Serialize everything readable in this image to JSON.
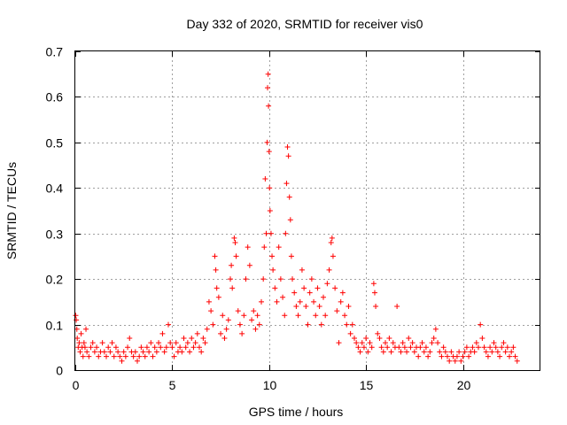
{
  "chart_data": {
    "type": "scatter",
    "title": "Day 332 of 2020, SRMTID for receiver vis0",
    "xlabel": "GPS time / hours",
    "ylabel": "SRMTID / TECUs",
    "xlim": [
      0,
      24
    ],
    "ylim": [
      0,
      0.7
    ],
    "xticks": [
      0,
      5,
      10,
      15,
      20
    ],
    "xtick_labels": [
      "0",
      "5",
      "10",
      "15",
      "20"
    ],
    "yticks": [
      0,
      0.1,
      0.2,
      0.3,
      0.4,
      0.5,
      0.6,
      0.7
    ],
    "ytick_labels": [
      "0",
      "0.1",
      "0.2",
      "0.3",
      "0.4",
      "0.5",
      "0.6",
      "0.7"
    ],
    "grid": true,
    "marker": "+",
    "color": "#ff0000",
    "series": [
      {
        "name": "vis0",
        "points": [
          [
            0.02,
            0.12
          ],
          [
            0.05,
            0.11
          ],
          [
            0.08,
            0.09
          ],
          [
            0.1,
            0.07
          ],
          [
            0.15,
            0.05
          ],
          [
            0.2,
            0.06
          ],
          [
            0.25,
            0.04
          ],
          [
            0.3,
            0.08
          ],
          [
            0.35,
            0.05
          ],
          [
            0.4,
            0.03
          ],
          [
            0.45,
            0.06
          ],
          [
            0.5,
            0.05
          ],
          [
            0.55,
            0.09
          ],
          [
            0.6,
            0.04
          ],
          [
            0.7,
            0.03
          ],
          [
            0.8,
            0.05
          ],
          [
            0.9,
            0.06
          ],
          [
            1.0,
            0.04
          ],
          [
            1.1,
            0.05
          ],
          [
            1.2,
            0.03
          ],
          [
            1.3,
            0.04
          ],
          [
            1.4,
            0.06
          ],
          [
            1.5,
            0.04
          ],
          [
            1.6,
            0.03
          ],
          [
            1.7,
            0.05
          ],
          [
            1.8,
            0.04
          ],
          [
            1.9,
            0.06
          ],
          [
            2.0,
            0.03
          ],
          [
            2.1,
            0.05
          ],
          [
            2.2,
            0.04
          ],
          [
            2.3,
            0.03
          ],
          [
            2.4,
            0.02
          ],
          [
            2.5,
            0.04
          ],
          [
            2.6,
            0.03
          ],
          [
            2.7,
            0.05
          ],
          [
            2.8,
            0.07
          ],
          [
            2.9,
            0.04
          ],
          [
            3.0,
            0.03
          ],
          [
            3.1,
            0.04
          ],
          [
            3.2,
            0.02
          ],
          [
            3.3,
            0.03
          ],
          [
            3.4,
            0.05
          ],
          [
            3.5,
            0.04
          ],
          [
            3.6,
            0.03
          ],
          [
            3.7,
            0.05
          ],
          [
            3.8,
            0.04
          ],
          [
            3.9,
            0.06
          ],
          [
            4.0,
            0.03
          ],
          [
            4.1,
            0.05
          ],
          [
            4.2,
            0.04
          ],
          [
            4.3,
            0.06
          ],
          [
            4.4,
            0.05
          ],
          [
            4.5,
            0.08
          ],
          [
            4.6,
            0.04
          ],
          [
            4.7,
            0.05
          ],
          [
            4.8,
            0.1
          ],
          [
            4.9,
            0.06
          ],
          [
            5.0,
            0.05
          ],
          [
            5.1,
            0.03
          ],
          [
            5.2,
            0.06
          ],
          [
            5.3,
            0.04
          ],
          [
            5.4,
            0.05
          ],
          [
            5.5,
            0.04
          ],
          [
            5.6,
            0.07
          ],
          [
            5.7,
            0.05
          ],
          [
            5.8,
            0.06
          ],
          [
            5.9,
            0.04
          ],
          [
            6.0,
            0.07
          ],
          [
            6.1,
            0.05
          ],
          [
            6.2,
            0.06
          ],
          [
            6.3,
            0.08
          ],
          [
            6.4,
            0.05
          ],
          [
            6.5,
            0.04
          ],
          [
            6.6,
            0.07
          ],
          [
            6.7,
            0.06
          ],
          [
            6.8,
            0.09
          ],
          [
            6.9,
            0.15
          ],
          [
            7.0,
            0.13
          ],
          [
            7.1,
            0.1
          ],
          [
            7.2,
            0.25
          ],
          [
            7.25,
            0.22
          ],
          [
            7.3,
            0.18
          ],
          [
            7.4,
            0.16
          ],
          [
            7.5,
            0.08
          ],
          [
            7.6,
            0.12
          ],
          [
            7.7,
            0.07
          ],
          [
            7.8,
            0.09
          ],
          [
            7.9,
            0.11
          ],
          [
            8.0,
            0.2
          ],
          [
            8.05,
            0.23
          ],
          [
            8.1,
            0.18
          ],
          [
            8.2,
            0.29
          ],
          [
            8.25,
            0.28
          ],
          [
            8.3,
            0.25
          ],
          [
            8.4,
            0.13
          ],
          [
            8.5,
            0.1
          ],
          [
            8.6,
            0.08
          ],
          [
            8.7,
            0.12
          ],
          [
            8.8,
            0.2
          ],
          [
            8.9,
            0.27
          ],
          [
            9.0,
            0.23
          ],
          [
            9.1,
            0.11
          ],
          [
            9.2,
            0.13
          ],
          [
            9.3,
            0.09
          ],
          [
            9.4,
            0.12
          ],
          [
            9.5,
            0.1
          ],
          [
            9.6,
            0.15
          ],
          [
            9.7,
            0.2
          ],
          [
            9.75,
            0.27
          ],
          [
            9.8,
            0.42
          ],
          [
            9.85,
            0.3
          ],
          [
            9.9,
            0.5
          ],
          [
            9.92,
            0.62
          ],
          [
            9.95,
            0.65
          ],
          [
            9.97,
            0.58
          ],
          [
            10.0,
            0.48
          ],
          [
            10.02,
            0.4
          ],
          [
            10.05,
            0.35
          ],
          [
            10.1,
            0.3
          ],
          [
            10.15,
            0.25
          ],
          [
            10.2,
            0.22
          ],
          [
            10.3,
            0.18
          ],
          [
            10.4,
            0.15
          ],
          [
            10.5,
            0.27
          ],
          [
            10.6,
            0.2
          ],
          [
            10.7,
            0.16
          ],
          [
            10.8,
            0.12
          ],
          [
            10.85,
            0.3
          ],
          [
            10.9,
            0.41
          ],
          [
            10.95,
            0.49
          ],
          [
            11.0,
            0.47
          ],
          [
            11.05,
            0.38
          ],
          [
            11.1,
            0.33
          ],
          [
            11.15,
            0.25
          ],
          [
            11.2,
            0.2
          ],
          [
            11.3,
            0.17
          ],
          [
            11.4,
            0.14
          ],
          [
            11.5,
            0.12
          ],
          [
            11.6,
            0.15
          ],
          [
            11.7,
            0.22
          ],
          [
            11.8,
            0.18
          ],
          [
            11.9,
            0.14
          ],
          [
            12.0,
            0.1
          ],
          [
            12.1,
            0.17
          ],
          [
            12.2,
            0.2
          ],
          [
            12.3,
            0.15
          ],
          [
            12.4,
            0.12
          ],
          [
            12.5,
            0.18
          ],
          [
            12.6,
            0.14
          ],
          [
            12.7,
            0.1
          ],
          [
            12.8,
            0.16
          ],
          [
            12.9,
            0.12
          ],
          [
            13.0,
            0.19
          ],
          [
            13.1,
            0.22
          ],
          [
            13.2,
            0.28
          ],
          [
            13.25,
            0.29
          ],
          [
            13.3,
            0.25
          ],
          [
            13.4,
            0.18
          ],
          [
            13.5,
            0.13
          ],
          [
            13.6,
            0.06
          ],
          [
            13.7,
            0.15
          ],
          [
            13.8,
            0.17
          ],
          [
            13.9,
            0.12
          ],
          [
            14.0,
            0.1
          ],
          [
            14.1,
            0.14
          ],
          [
            14.2,
            0.08
          ],
          [
            14.3,
            0.1
          ],
          [
            14.4,
            0.07
          ],
          [
            14.5,
            0.06
          ],
          [
            14.6,
            0.05
          ],
          [
            14.7,
            0.04
          ],
          [
            14.8,
            0.06
          ],
          [
            14.9,
            0.05
          ],
          [
            15.0,
            0.07
          ],
          [
            15.1,
            0.04
          ],
          [
            15.2,
            0.06
          ],
          [
            15.3,
            0.05
          ],
          [
            15.4,
            0.19
          ],
          [
            15.45,
            0.17
          ],
          [
            15.5,
            0.14
          ],
          [
            15.6,
            0.08
          ],
          [
            15.7,
            0.07
          ],
          [
            15.8,
            0.05
          ],
          [
            15.9,
            0.04
          ],
          [
            16.0,
            0.06
          ],
          [
            16.1,
            0.05
          ],
          [
            16.2,
            0.07
          ],
          [
            16.3,
            0.04
          ],
          [
            16.4,
            0.06
          ],
          [
            16.5,
            0.05
          ],
          [
            16.6,
            0.14
          ],
          [
            16.7,
            0.05
          ],
          [
            16.8,
            0.04
          ],
          [
            16.9,
            0.06
          ],
          [
            17.0,
            0.05
          ],
          [
            17.1,
            0.04
          ],
          [
            17.2,
            0.07
          ],
          [
            17.3,
            0.05
          ],
          [
            17.4,
            0.06
          ],
          [
            17.5,
            0.04
          ],
          [
            17.6,
            0.05
          ],
          [
            17.7,
            0.03
          ],
          [
            17.8,
            0.05
          ],
          [
            17.9,
            0.06
          ],
          [
            18.0,
            0.04
          ],
          [
            18.1,
            0.05
          ],
          [
            18.2,
            0.03
          ],
          [
            18.3,
            0.04
          ],
          [
            18.4,
            0.06
          ],
          [
            18.5,
            0.07
          ],
          [
            18.6,
            0.09
          ],
          [
            18.7,
            0.06
          ],
          [
            18.8,
            0.04
          ],
          [
            18.9,
            0.03
          ],
          [
            19.0,
            0.05
          ],
          [
            19.1,
            0.04
          ],
          [
            19.2,
            0.03
          ],
          [
            19.3,
            0.02
          ],
          [
            19.4,
            0.04
          ],
          [
            19.5,
            0.03
          ],
          [
            19.6,
            0.02
          ],
          [
            19.7,
            0.03
          ],
          [
            19.8,
            0.04
          ],
          [
            19.9,
            0.02
          ],
          [
            20.0,
            0.03
          ],
          [
            20.1,
            0.04
          ],
          [
            20.2,
            0.05
          ],
          [
            20.3,
            0.03
          ],
          [
            20.4,
            0.04
          ],
          [
            20.5,
            0.05
          ],
          [
            20.6,
            0.04
          ],
          [
            20.7,
            0.06
          ],
          [
            20.8,
            0.05
          ],
          [
            20.9,
            0.1
          ],
          [
            21.0,
            0.07
          ],
          [
            21.1,
            0.05
          ],
          [
            21.2,
            0.04
          ],
          [
            21.3,
            0.03
          ],
          [
            21.4,
            0.05
          ],
          [
            21.5,
            0.04
          ],
          [
            21.6,
            0.06
          ],
          [
            21.7,
            0.05
          ],
          [
            21.8,
            0.04
          ],
          [
            21.9,
            0.03
          ],
          [
            22.0,
            0.05
          ],
          [
            22.1,
            0.06
          ],
          [
            22.2,
            0.04
          ],
          [
            22.3,
            0.05
          ],
          [
            22.4,
            0.03
          ],
          [
            22.5,
            0.04
          ],
          [
            22.6,
            0.05
          ],
          [
            22.7,
            0.03
          ],
          [
            22.8,
            0.02
          ]
        ]
      }
    ]
  }
}
